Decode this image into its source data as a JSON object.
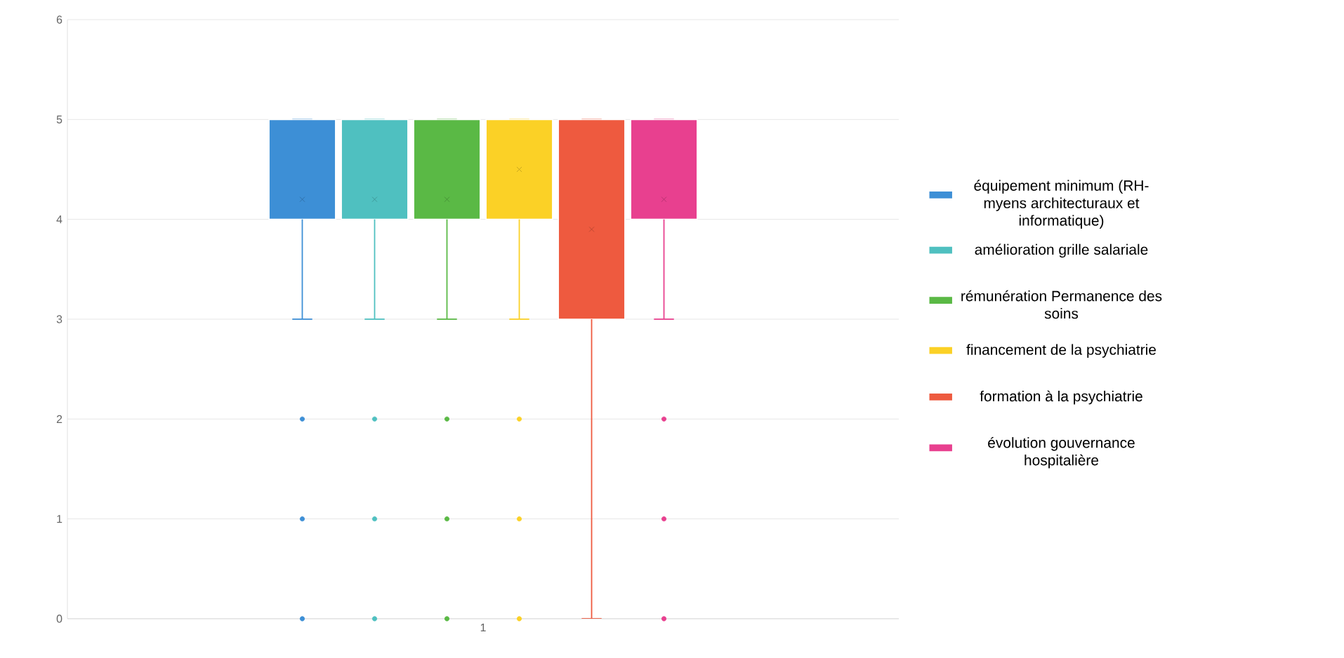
{
  "chart_data": {
    "type": "box",
    "categories": [
      "1"
    ],
    "ylim": [
      0,
      6
    ],
    "yticks": [
      0,
      1,
      2,
      3,
      4,
      5,
      6
    ],
    "grid": "y",
    "legend": "right",
    "series": [
      {
        "name": "équipement minimum (RH- myens architecturaux et informatique)",
        "color": "#3d8fd6",
        "boxes": [
          {
            "low": 3,
            "q1": 4,
            "median": 5,
            "q3": 5,
            "high": 5,
            "mean": 4.2,
            "outliers": [
              0,
              1,
              2
            ]
          }
        ]
      },
      {
        "name": "amélioration grille salariale",
        "color": "#4fc0c0",
        "boxes": [
          {
            "low": 3,
            "q1": 4,
            "median": 5,
            "q3": 5,
            "high": 5,
            "mean": 4.2,
            "outliers": [
              0,
              1,
              2
            ]
          }
        ]
      },
      {
        "name": "rémunération Permanence des soins",
        "color": "#5ab945",
        "boxes": [
          {
            "low": 3,
            "q1": 4,
            "median": 5,
            "q3": 5,
            "high": 5,
            "mean": 4.2,
            "outliers": [
              0,
              1,
              2
            ]
          }
        ]
      },
      {
        "name": "financement de la psychiatrie",
        "color": "#fbd126",
        "boxes": [
          {
            "low": 3,
            "q1": 4,
            "median": 5,
            "q3": 5,
            "high": 5,
            "mean": 4.5,
            "outliers": [
              0,
              1,
              2
            ]
          }
        ]
      },
      {
        "name": "formation à la psychiatrie",
        "color": "#ee5a3f",
        "boxes": [
          {
            "low": 0,
            "q1": 3,
            "median": 5,
            "q3": 5,
            "high": 5,
            "mean": 3.9
          }
        ]
      },
      {
        "name": "évolution gouvernance hospitalière",
        "color": "#e8408f",
        "boxes": [
          {
            "low": 3,
            "q1": 4,
            "median": 5,
            "q3": 5,
            "high": 5,
            "mean": 4.2,
            "outliers": [
              0,
              1,
              2
            ]
          }
        ]
      }
    ]
  }
}
